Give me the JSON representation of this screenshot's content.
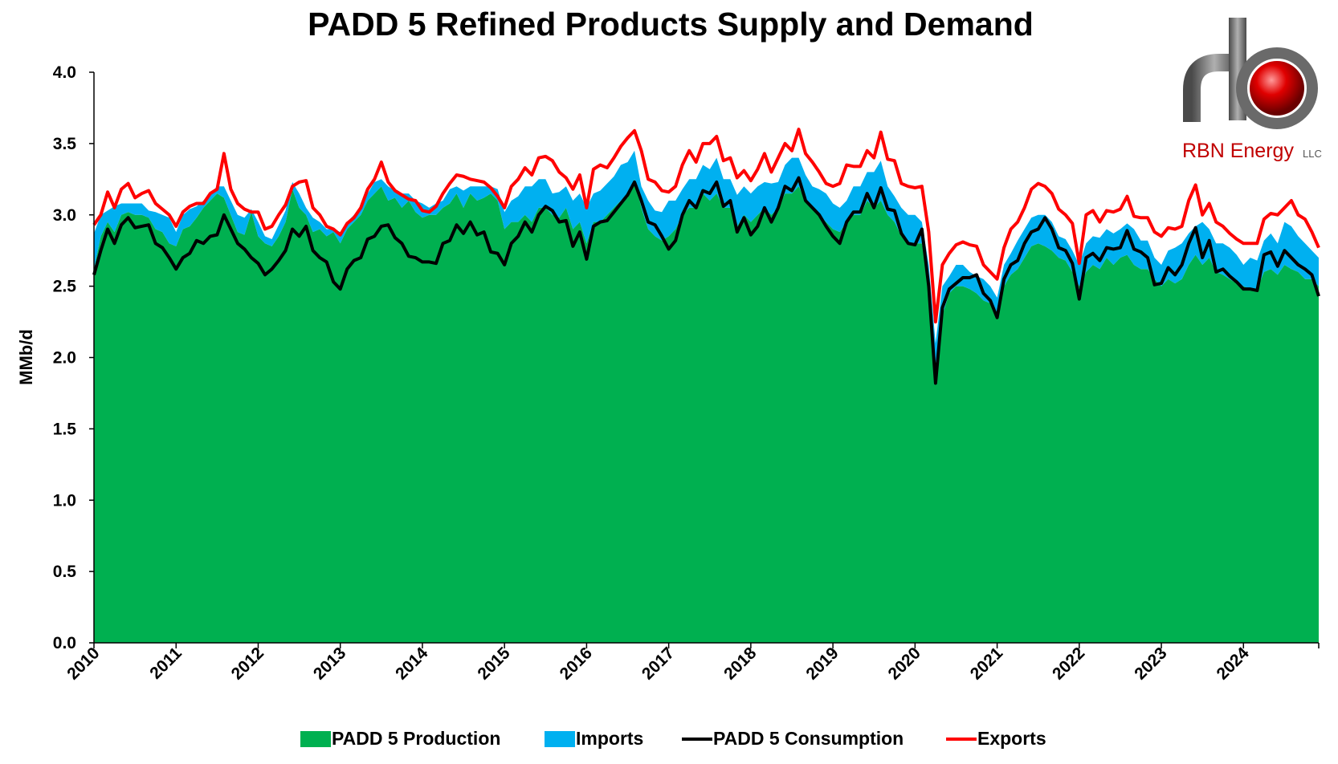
{
  "chart_data": {
    "type": "area",
    "title": "PADD 5 Refined Products Supply and Demand",
    "y_label": "MMb/d",
    "ylim": [
      0,
      4
    ],
    "yticks": [
      {
        "value": 0,
        "label": "0.0"
      },
      {
        "value": 0.5,
        "label": "0.5"
      },
      {
        "value": 1,
        "label": "1.0"
      },
      {
        "value": 1.5,
        "label": "1.5"
      },
      {
        "value": 2,
        "label": "2.0"
      },
      {
        "value": 2.5,
        "label": "2.5"
      },
      {
        "value": 3,
        "label": "3.0"
      },
      {
        "value": 3.5,
        "label": "3.5"
      },
      {
        "value": 4,
        "label": "4.0"
      }
    ],
    "grid": false,
    "legend": "bottom",
    "categories": [
      "2010",
      null,
      null,
      null,
      null,
      null,
      null,
      null,
      null,
      null,
      null,
      null,
      "2011",
      null,
      null,
      null,
      null,
      null,
      null,
      null,
      null,
      null,
      null,
      null,
      "2012",
      null,
      null,
      null,
      null,
      null,
      null,
      null,
      null,
      null,
      null,
      null,
      "2013",
      null,
      null,
      null,
      null,
      null,
      null,
      null,
      null,
      null,
      null,
      null,
      "2014",
      null,
      null,
      null,
      null,
      null,
      null,
      null,
      null,
      null,
      null,
      null,
      "2015",
      null,
      null,
      null,
      null,
      null,
      null,
      null,
      null,
      null,
      null,
      null,
      "2016",
      null,
      null,
      null,
      null,
      null,
      null,
      null,
      null,
      null,
      null,
      null,
      "2017",
      null,
      null,
      null,
      null,
      null,
      null,
      null,
      null,
      null,
      null,
      null,
      "2018",
      null,
      null,
      null,
      null,
      null,
      null,
      null,
      null,
      null,
      null,
      null,
      "2019",
      null,
      null,
      null,
      null,
      null,
      null,
      null,
      null,
      null,
      null,
      null,
      "2020",
      null,
      null,
      null,
      null,
      null,
      null,
      null,
      null,
      null,
      null,
      null,
      "2021",
      null,
      null,
      null,
      null,
      null,
      null,
      null,
      null,
      null,
      null,
      null,
      "2022",
      null,
      null,
      null,
      null,
      null,
      null,
      null,
      null,
      null,
      null,
      null,
      "2023",
      null,
      null,
      null,
      null,
      null,
      null,
      null,
      null,
      null,
      null,
      null,
      "2024",
      null,
      null,
      null,
      null,
      null,
      null,
      null,
      null,
      null,
      null,
      null
    ],
    "series": [
      {
        "name": "PADD 5 Production",
        "kind": "area",
        "color": "#00b050",
        "values": [
          2.62,
          2.85,
          2.95,
          2.88,
          3.0,
          3.02,
          3.0,
          3.0,
          2.98,
          2.9,
          2.88,
          2.8,
          2.78,
          2.9,
          2.92,
          2.98,
          3.05,
          3.1,
          3.15,
          3.12,
          3.0,
          2.88,
          2.86,
          3.02,
          2.85,
          2.8,
          2.78,
          2.85,
          2.95,
          3.18,
          3.05,
          3.0,
          2.88,
          2.9,
          2.85,
          2.88,
          2.8,
          2.9,
          2.95,
          3.0,
          3.1,
          3.15,
          3.2,
          3.1,
          3.12,
          3.05,
          3.1,
          3.02,
          2.98,
          3.0,
          3.0,
          3.05,
          3.08,
          3.15,
          3.05,
          3.15,
          3.1,
          3.12,
          3.15,
          3.1,
          2.9,
          2.95,
          2.95,
          3.0,
          2.95,
          3.05,
          3.05,
          3.0,
          2.98,
          3.05,
          2.9,
          2.95,
          2.8,
          2.95,
          2.95,
          3.0,
          3.05,
          3.1,
          3.12,
          3.25,
          3.05,
          2.9,
          2.85,
          2.82,
          2.85,
          2.9,
          3.0,
          3.05,
          3.05,
          3.15,
          3.1,
          3.15,
          3.05,
          3.05,
          2.92,
          3.0,
          2.95,
          3.0,
          3.05,
          3.0,
          3.05,
          3.15,
          3.15,
          3.2,
          3.1,
          3.05,
          3.0,
          2.95,
          2.9,
          2.88,
          2.95,
          3.0,
          3.0,
          3.1,
          3.05,
          3.1,
          3.0,
          2.95,
          2.85,
          2.8,
          2.8,
          2.8,
          2.55,
          1.95,
          2.3,
          2.45,
          2.5,
          2.5,
          2.48,
          2.45,
          2.4,
          2.38,
          2.3,
          2.5,
          2.58,
          2.62,
          2.7,
          2.78,
          2.8,
          2.78,
          2.75,
          2.7,
          2.68,
          2.6,
          2.5,
          2.6,
          2.65,
          2.62,
          2.7,
          2.65,
          2.7,
          2.72,
          2.65,
          2.62,
          2.62,
          2.55,
          2.5,
          2.55,
          2.52,
          2.55,
          2.65,
          2.72,
          2.65,
          2.7,
          2.6,
          2.58,
          2.55,
          2.52,
          2.5,
          2.48,
          2.48,
          2.6,
          2.62,
          2.58,
          2.65,
          2.62,
          2.6,
          2.55,
          2.55,
          2.5
        ]
      },
      {
        "name": "Imports",
        "kind": "area",
        "stack_on": 0,
        "color": "#00b0f0",
        "values": [
          0.25,
          0.15,
          0.08,
          0.18,
          0.08,
          0.06,
          0.08,
          0.08,
          0.05,
          0.12,
          0.12,
          0.18,
          0.1,
          0.1,
          0.12,
          0.08,
          0.05,
          0.05,
          0.05,
          0.08,
          0.1,
          0.12,
          0.12,
          0.02,
          0.1,
          0.05,
          0.05,
          0.08,
          0.08,
          0.05,
          0.1,
          0.05,
          0.1,
          0.05,
          0.05,
          0.02,
          0.08,
          0.05,
          0.05,
          0.05,
          0.05,
          0.08,
          0.05,
          0.1,
          0.05,
          0.1,
          0.05,
          0.08,
          0.1,
          0.05,
          0.08,
          0.05,
          0.1,
          0.05,
          0.12,
          0.05,
          0.1,
          0.08,
          0.05,
          0.08,
          0.12,
          0.15,
          0.18,
          0.2,
          0.25,
          0.2,
          0.2,
          0.15,
          0.18,
          0.15,
          0.2,
          0.2,
          0.25,
          0.2,
          0.22,
          0.22,
          0.22,
          0.25,
          0.25,
          0.2,
          0.15,
          0.2,
          0.18,
          0.2,
          0.25,
          0.2,
          0.18,
          0.2,
          0.2,
          0.2,
          0.22,
          0.25,
          0.2,
          0.2,
          0.22,
          0.2,
          0.2,
          0.2,
          0.18,
          0.22,
          0.18,
          0.2,
          0.25,
          0.2,
          0.18,
          0.15,
          0.18,
          0.2,
          0.18,
          0.17,
          0.15,
          0.2,
          0.2,
          0.2,
          0.25,
          0.28,
          0.2,
          0.18,
          0.2,
          0.2,
          0.2,
          0.15,
          0.1,
          0.15,
          0.2,
          0.12,
          0.15,
          0.15,
          0.12,
          0.12,
          0.15,
          0.12,
          0.12,
          0.15,
          0.15,
          0.2,
          0.2,
          0.2,
          0.2,
          0.22,
          0.2,
          0.15,
          0.15,
          0.15,
          0.15,
          0.2,
          0.2,
          0.22,
          0.2,
          0.22,
          0.2,
          0.22,
          0.25,
          0.2,
          0.2,
          0.15,
          0.15,
          0.2,
          0.25,
          0.25,
          0.22,
          0.2,
          0.3,
          0.2,
          0.2,
          0.22,
          0.22,
          0.2,
          0.15,
          0.22,
          0.2,
          0.22,
          0.25,
          0.22,
          0.3,
          0.3,
          0.25,
          0.25,
          0.2,
          0.2
        ]
      },
      {
        "name": "PADD 5 Consumption",
        "kind": "line",
        "color": "#000000",
        "values": [
          2.58,
          2.75,
          2.9,
          2.8,
          2.93,
          2.98,
          2.91,
          2.92,
          2.93,
          2.8,
          2.77,
          2.7,
          2.62,
          2.7,
          2.73,
          2.82,
          2.8,
          2.85,
          2.86,
          3.0,
          2.9,
          2.8,
          2.76,
          2.7,
          2.66,
          2.58,
          2.62,
          2.68,
          2.75,
          2.9,
          2.85,
          2.92,
          2.75,
          2.7,
          2.67,
          2.53,
          2.48,
          2.62,
          2.68,
          2.7,
          2.83,
          2.85,
          2.92,
          2.93,
          2.84,
          2.8,
          2.71,
          2.7,
          2.67,
          2.67,
          2.66,
          2.8,
          2.82,
          2.93,
          2.87,
          2.95,
          2.86,
          2.88,
          2.74,
          2.73,
          2.65,
          2.8,
          2.85,
          2.95,
          2.88,
          3.0,
          3.06,
          3.03,
          2.95,
          2.96,
          2.78,
          2.88,
          2.69,
          2.92,
          2.95,
          2.96,
          3.02,
          3.08,
          3.14,
          3.23,
          3.1,
          2.95,
          2.93,
          2.85,
          2.76,
          2.82,
          3.0,
          3.1,
          3.05,
          3.17,
          3.15,
          3.23,
          3.06,
          3.1,
          2.88,
          2.98,
          2.86,
          2.92,
          3.05,
          2.95,
          3.05,
          3.2,
          3.17,
          3.26,
          3.1,
          3.05,
          3.0,
          2.92,
          2.85,
          2.8,
          2.95,
          3.02,
          3.02,
          3.15,
          3.05,
          3.19,
          3.04,
          3.03,
          2.87,
          2.8,
          2.79,
          2.9,
          2.5,
          1.82,
          2.35,
          2.48,
          2.52,
          2.56,
          2.56,
          2.58,
          2.45,
          2.4,
          2.28,
          2.55,
          2.65,
          2.68,
          2.8,
          2.88,
          2.9,
          2.98,
          2.9,
          2.77,
          2.75,
          2.66,
          2.41,
          2.7,
          2.73,
          2.68,
          2.77,
          2.76,
          2.77,
          2.89,
          2.76,
          2.74,
          2.7,
          2.51,
          2.52,
          2.63,
          2.58,
          2.65,
          2.8,
          2.91,
          2.7,
          2.82,
          2.6,
          2.62,
          2.57,
          2.53,
          2.48,
          2.48,
          2.47,
          2.72,
          2.74,
          2.64,
          2.75,
          2.7,
          2.65,
          2.62,
          2.58,
          2.43
        ]
      },
      {
        "name": "Exports",
        "kind": "line",
        "stack_on": 2,
        "color": "#ff0000",
        "values": [
          0.35,
          0.25,
          0.26,
          0.25,
          0.25,
          0.24,
          0.21,
          0.23,
          0.24,
          0.28,
          0.27,
          0.3,
          0.3,
          0.32,
          0.33,
          0.26,
          0.28,
          0.3,
          0.32,
          0.43,
          0.28,
          0.28,
          0.28,
          0.32,
          0.36,
          0.32,
          0.3,
          0.32,
          0.32,
          0.3,
          0.38,
          0.32,
          0.3,
          0.3,
          0.25,
          0.37,
          0.38,
          0.32,
          0.3,
          0.35,
          0.35,
          0.4,
          0.45,
          0.3,
          0.33,
          0.34,
          0.4,
          0.4,
          0.36,
          0.35,
          0.4,
          0.35,
          0.4,
          0.35,
          0.4,
          0.3,
          0.38,
          0.35,
          0.45,
          0.4,
          0.4,
          0.4,
          0.4,
          0.38,
          0.4,
          0.4,
          0.35,
          0.35,
          0.35,
          0.3,
          0.4,
          0.4,
          0.36,
          0.4,
          0.4,
          0.37,
          0.38,
          0.4,
          0.4,
          0.36,
          0.35,
          0.3,
          0.3,
          0.32,
          0.4,
          0.38,
          0.35,
          0.35,
          0.32,
          0.33,
          0.35,
          0.32,
          0.32,
          0.3,
          0.38,
          0.33,
          0.38,
          0.4,
          0.38,
          0.35,
          0.35,
          0.3,
          0.28,
          0.34,
          0.33,
          0.32,
          0.3,
          0.3,
          0.35,
          0.42,
          0.4,
          0.32,
          0.32,
          0.3,
          0.35,
          0.39,
          0.35,
          0.35,
          0.35,
          0.4,
          0.4,
          0.3,
          0.38,
          0.43,
          0.3,
          0.25,
          0.27,
          0.25,
          0.23,
          0.2,
          0.2,
          0.2,
          0.27,
          0.22,
          0.25,
          0.27,
          0.25,
          0.3,
          0.32,
          0.22,
          0.25,
          0.27,
          0.25,
          0.28,
          0.25,
          0.3,
          0.3,
          0.27,
          0.26,
          0.26,
          0.27,
          0.24,
          0.23,
          0.24,
          0.28,
          0.37,
          0.33,
          0.28,
          0.32,
          0.27,
          0.3,
          0.3,
          0.3,
          0.26,
          0.35,
          0.3,
          0.3,
          0.3,
          0.32,
          0.32,
          0.33,
          0.25,
          0.27,
          0.36,
          0.3,
          0.4,
          0.35,
          0.35,
          0.3,
          0.34
        ]
      }
    ]
  },
  "logo": {
    "name": "RBN Energy",
    "suffix": "LLC"
  }
}
